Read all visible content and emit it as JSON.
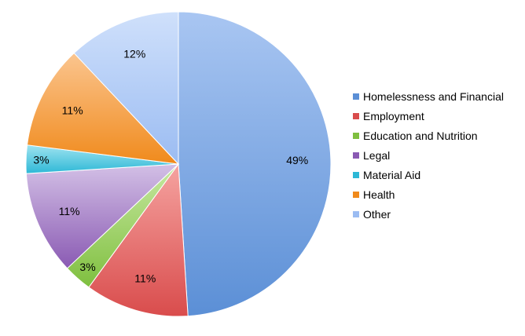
{
  "chart_data": {
    "type": "pie",
    "title": "",
    "legend_position": "right",
    "slices": [
      {
        "label": "Homelessness and Financial",
        "value": 49,
        "value_label": "49%",
        "color": "#5b8fd6",
        "color_light": "#a9c6f2"
      },
      {
        "label": "Employment",
        "value": 11,
        "value_label": "11%",
        "color": "#d94c4c",
        "color_light": "#f5a3a0"
      },
      {
        "label": "Education and Nutrition",
        "value": 3,
        "value_label": "3%",
        "color": "#7fbf3f",
        "color_light": "#c7e8a1"
      },
      {
        "label": "Legal",
        "value": 11,
        "value_label": "11%",
        "color": "#8a5ab3",
        "color_light": "#d3c0e6"
      },
      {
        "label": "Material Aid",
        "value": 3,
        "value_label": "3%",
        "color": "#2db8d6",
        "color_light": "#9fe3f0"
      },
      {
        "label": "Health",
        "value": 11,
        "value_label": "11%",
        "color": "#f08a1c",
        "color_light": "#fbc58f"
      },
      {
        "label": "Other",
        "value": 12,
        "value_label": "12%",
        "color": "#9bbcf2",
        "color_light": "#cfe0fb"
      }
    ]
  }
}
